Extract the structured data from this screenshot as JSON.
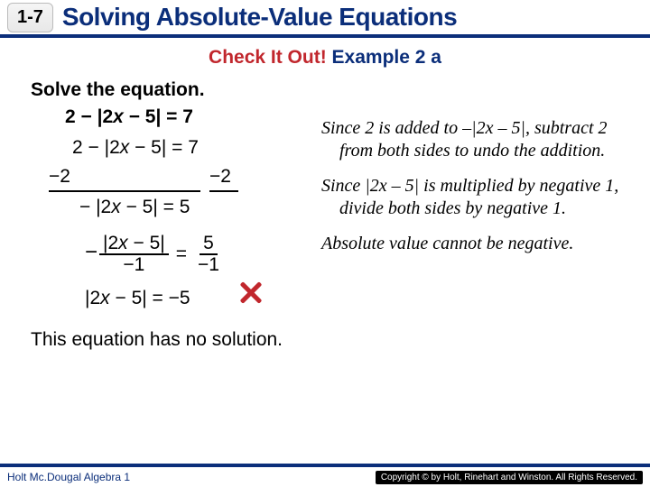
{
  "header": {
    "section": "1-7",
    "title": "Solving Absolute-Value Equations"
  },
  "subtitle": {
    "red": "Check It Out!",
    "blue": " Example 2 a"
  },
  "prompt": "Solve the equation.",
  "equation_bold": "2 − |2x − 5| = 7",
  "work": {
    "line1": "2 − |2x − 5| = 7",
    "sub_left": "−2",
    "sub_right": "−2",
    "line3": "− |2x − 5| = 5",
    "frac_left_num": "|2x − 5|",
    "frac_left_den": "−1",
    "frac_right_num": "5",
    "frac_right_den": "−1",
    "result": "|2x − 5| = −5"
  },
  "explain": {
    "p1": "Since 2 is added to –|2x – 5|, subtract 2 from both sides to undo the addition.",
    "p2": "Since |2x – 5| is multiplied by negative 1, divide both sides by negative 1.",
    "p3": "Absolute value cannot be negative."
  },
  "conclusion": "This equation has no solution.",
  "footer": {
    "left": "Holt Mc.Dougal Algebra 1",
    "right": "Copyright © by Holt, Rinehart and Winston. All Rights Reserved."
  },
  "colors": {
    "brand_blue": "#0b2e7a",
    "brand_red": "#c1272d",
    "bg": "#ffffff"
  }
}
